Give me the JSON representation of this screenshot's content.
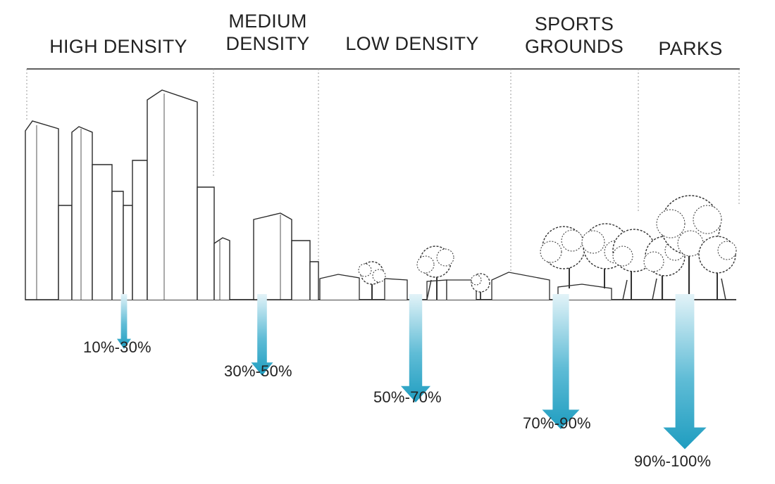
{
  "diagram": {
    "zones": [
      {
        "id": "high-density",
        "label_lines": [
          "HIGH DENSITY"
        ],
        "range": "10%-30%",
        "share": 0.2
      },
      {
        "id": "medium-density",
        "label_lines": [
          "MEDIUM",
          "DENSITY"
        ],
        "range": "30%-50%",
        "share": 0.4
      },
      {
        "id": "low-density",
        "label_lines": [
          "LOW DENSITY"
        ],
        "range": "50%-70%",
        "share": 0.6
      },
      {
        "id": "sports-grounds",
        "label_lines": [
          "SPORTS",
          "GROUNDS"
        ],
        "range": "70%-90%",
        "share": 0.8
      },
      {
        "id": "parks",
        "label_lines": [
          "PARKS"
        ],
        "range": "90%-100%",
        "share": 0.95
      }
    ],
    "colors": {
      "line": "#2a2a2a",
      "divider": "#9a9a9a",
      "arrow": "#1f9dc0",
      "arrow_light": "#d6eef6",
      "tree": "#333333"
    }
  }
}
